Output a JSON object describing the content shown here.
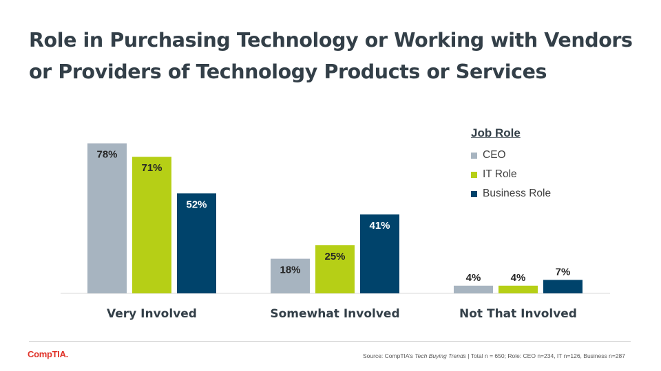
{
  "title": "Role in Purchasing Technology or Working with Vendors or Providers of Technology Products or Services",
  "legend": {
    "title": "Job Role",
    "items": [
      {
        "label": "CEO",
        "color": "#a7b4c0"
      },
      {
        "label": "IT Role",
        "color": "#b6cf16"
      },
      {
        "label": "Business Role",
        "color": "#00436b"
      }
    ]
  },
  "chart_data": {
    "type": "bar",
    "categories": [
      "Very Involved",
      "Somewhat Involved",
      "Not That Involved"
    ],
    "series": [
      {
        "name": "CEO",
        "values": [
          78,
          18,
          4
        ],
        "color": "#a7b4c0"
      },
      {
        "name": "IT Role",
        "values": [
          71,
          25,
          4
        ],
        "color": "#b6cf16"
      },
      {
        "name": "Business Role",
        "values": [
          52,
          41,
          7
        ],
        "color": "#00436b"
      }
    ],
    "labels": [
      [
        "78%",
        "18%",
        "4%"
      ],
      [
        "71%",
        "25%",
        "4%"
      ],
      [
        "52%",
        "41%",
        "7%"
      ]
    ],
    "ylim": [
      0,
      100
    ],
    "grid": false,
    "legend_position": "top-right"
  },
  "footer": {
    "logo": "CompTIA.",
    "source_prefix": "Source:  CompTIA’s ",
    "source_italic": "Tech Buying Trends",
    "source_suffix": " | Total n = 650; Role:  CEO n=234, IT n=126, Business n=287"
  }
}
